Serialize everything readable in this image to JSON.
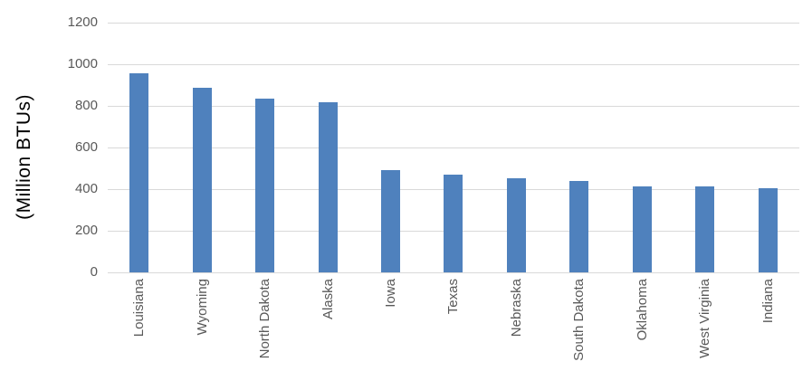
{
  "chart_data": {
    "type": "bar",
    "title": "",
    "xlabel": "",
    "ylabel": "(Million BTUs)",
    "categories": [
      "Louisiana",
      "Wyoming",
      "North Dakota",
      "Alaska",
      "Iowa",
      "Texas",
      "Nebraska",
      "South Dakota",
      "Oklahoma",
      "West Virginia",
      "Indiana"
    ],
    "values": [
      955,
      885,
      835,
      818,
      490,
      470,
      452,
      440,
      415,
      413,
      405
    ],
    "ylim": [
      0,
      1200
    ],
    "yticks": [
      0,
      200,
      400,
      600,
      800,
      1000,
      1200
    ],
    "grid": true,
    "legend": "none",
    "colors": {
      "bar": "#4f81bd",
      "gridline": "#d9d9d9",
      "tick_label": "#595959",
      "axis_title": "#000000",
      "background": "#ffffff"
    }
  }
}
